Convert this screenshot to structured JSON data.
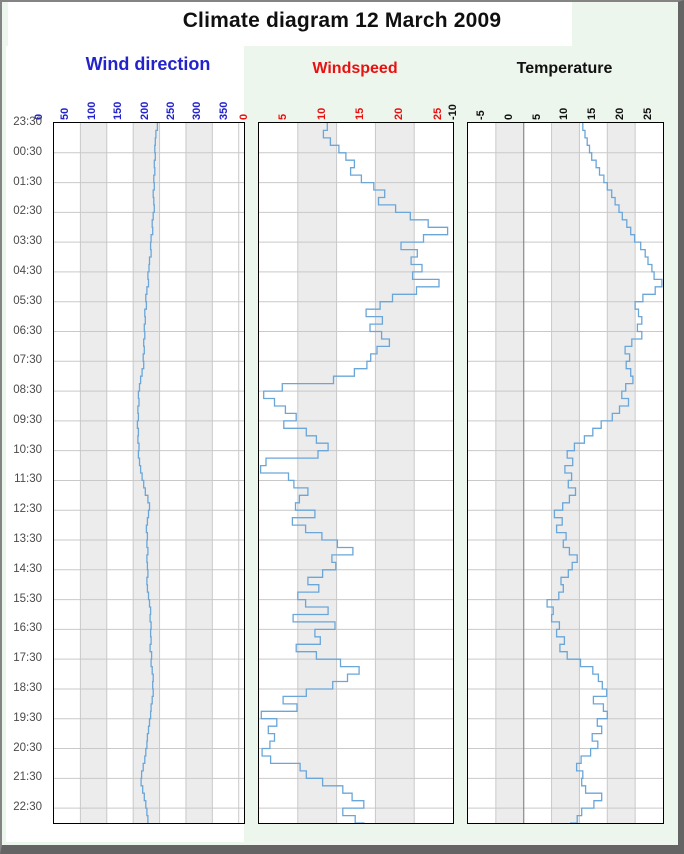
{
  "title": "Climate diagram 12 March 2009",
  "colors": {
    "line": "#6ba6d9",
    "grid": "#c9c9c9",
    "band_fill": "#ececec",
    "zero_line": "#8a8a8a",
    "time_label": "#4a4a4a",
    "panel_border": "#000000",
    "wind_direction_accent": "#2323cc",
    "windspeed_accent": "#e81010",
    "temperature_accent": "#111111"
  },
  "chart_data": {
    "type": "line",
    "step": true,
    "title": "Climate diagram 12 March 2009",
    "orientation": "time-vertical-top-to-bottom",
    "time_axis": {
      "start": "23:30",
      "span_hours": 23.5,
      "label_interval_hours": 1,
      "labels": [
        "23:30",
        "00:30",
        "01:30",
        "02:30",
        "03:30",
        "04:30",
        "05:30",
        "06:30",
        "07:30",
        "08:30",
        "09:30",
        "10:30",
        "11:30",
        "12:30",
        "13:30",
        "14:30",
        "15:30",
        "16:30",
        "17:30",
        "18:30",
        "19:30",
        "20:30",
        "21:30",
        "22:30"
      ]
    },
    "sample_interval_hours": 0.25,
    "panels": [
      {
        "title": "Wind direction",
        "color": "#2323cc",
        "xlim": [
          0,
          360
        ],
        "xticks": [
          0,
          50,
          100,
          150,
          200,
          250,
          300,
          350
        ],
        "shaded_bands": [
          [
            50,
            100
          ],
          [
            150,
            200
          ],
          [
            250,
            300
          ]
        ],
        "zero_line": null,
        "values": [
          196,
          193,
          192,
          191,
          192,
          190,
          191,
          189,
          190,
          188,
          189,
          190,
          188,
          186,
          187,
          184,
          183,
          184,
          181,
          180,
          178,
          179,
          176,
          174,
          175,
          172,
          173,
          171,
          172,
          170,
          171,
          169,
          170,
          167,
          164,
          162,
          160,
          161,
          159,
          160,
          158,
          160,
          159,
          161,
          160,
          162,
          164,
          167,
          170,
          173,
          178,
          181,
          179,
          177,
          175,
          177,
          176,
          178,
          176,
          177,
          178,
          176,
          177,
          179,
          181,
          183,
          182,
          184,
          183,
          184,
          182,
          185,
          184,
          186,
          188,
          187,
          188,
          186,
          184,
          183,
          181,
          179,
          177,
          176,
          174,
          172,
          169,
          166,
          165,
          168,
          171,
          174,
          176,
          178,
          177
        ]
      },
      {
        "title": "Windspeed",
        "color": "#e81010",
        "xlim": [
          0,
          25
        ],
        "xticks": [
          0,
          5,
          10,
          15,
          20,
          25
        ],
        "shaded_bands": [
          [
            5,
            10
          ],
          [
            15,
            20
          ]
        ],
        "zero_line": null,
        "values": [
          8.8,
          8.3,
          9.2,
          10.3,
          11.2,
          12.3,
          11.8,
          13.2,
          14.8,
          16.2,
          15.4,
          17.6,
          19.5,
          21.8,
          24.3,
          21.2,
          18.3,
          20.4,
          19.6,
          21,
          19.8,
          23.2,
          20.3,
          17.2,
          15.6,
          13.8,
          15.9,
          14.3,
          15.8,
          16.8,
          15.2,
          14.4,
          13.9,
          12.3,
          9.6,
          3,
          0.6,
          2,
          3.4,
          4.8,
          3.2,
          6.1,
          7.4,
          8.9,
          7.6,
          0.9,
          0.2,
          3.8,
          4.5,
          6.3,
          5.2,
          4.7,
          7.2,
          4.3,
          6,
          8.1,
          10.1,
          12.1,
          9.4,
          9.9,
          8.2,
          6.3,
          7.7,
          5,
          6,
          8.9,
          4.4,
          9.8,
          7.2,
          7.9,
          4.8,
          7.4,
          10.5,
          12.9,
          11.4,
          9.5,
          6.1,
          3.1,
          4.9,
          0.3,
          2.3,
          1.2,
          2,
          1.4,
          0.4,
          1.5,
          5.3,
          6.1,
          8.2,
          10.8,
          12,
          13.5,
          10.8,
          12.4,
          13.6
        ]
      },
      {
        "title": "Temperature",
        "color": "#111111",
        "xlim": [
          -10,
          25
        ],
        "xticks": [
          -10,
          -5,
          0,
          5,
          10,
          15,
          20,
          25
        ],
        "shaded_bands": [
          [
            -5,
            0
          ],
          [
            5,
            10
          ],
          [
            15,
            20
          ]
        ],
        "zero_line": 0,
        "values": [
          10.6,
          11,
          11.4,
          11.8,
          12.2,
          13,
          13.6,
          14.4,
          15,
          15.8,
          16.4,
          17.1,
          17.7,
          18.5,
          19.2,
          19.9,
          21,
          21.8,
          22.3,
          23,
          23.4,
          24.8,
          23.6,
          21.4,
          20,
          20.6,
          21.2,
          20.4,
          21.2,
          19.4,
          18.2,
          19,
          18.4,
          19.2,
          19.6,
          18.3,
          17.6,
          18.8,
          17.2,
          15.9,
          13.9,
          12.4,
          10.9,
          9.1,
          7.8,
          8.8,
          7.4,
          8.6,
          8,
          9.3,
          8.2,
          7,
          5.5,
          6.9,
          5.9,
          7.6,
          7.1,
          8.2,
          9.6,
          8.7,
          8,
          6.7,
          7.1,
          6.3,
          4.2,
          5.3,
          5,
          6.4,
          5.9,
          7.3,
          6.5,
          7.8,
          10.2,
          12.4,
          13.4,
          14.1,
          14.9,
          12.5,
          14.3,
          15,
          13.2,
          14,
          12.3,
          13.3,
          12,
          10.3,
          9.5,
          10.6,
          10.4,
          11.1,
          14,
          12.6,
          10.4,
          9.6,
          8.3
        ]
      }
    ]
  }
}
